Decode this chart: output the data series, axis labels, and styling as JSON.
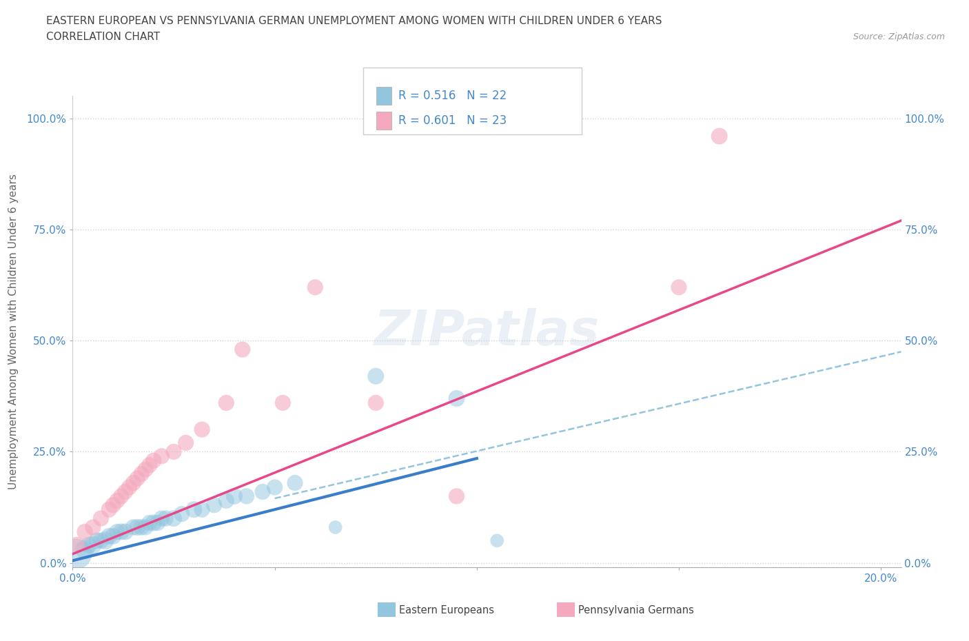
{
  "title_line1": "EASTERN EUROPEAN VS PENNSYLVANIA GERMAN UNEMPLOYMENT AMONG WOMEN WITH CHILDREN UNDER 6 YEARS",
  "title_line2": "CORRELATION CHART",
  "source": "Source: ZipAtlas.com",
  "ylabel": "Unemployment Among Women with Children Under 6 years",
  "legend_label1": "Eastern Europeans",
  "legend_label2": "Pennsylvania Germans",
  "blue_color": "#92c5de",
  "pink_color": "#f4a9be",
  "blue_line_color": "#3a7dc9",
  "pink_line_color": "#e8478a",
  "dashed_line_color": "#92c5de",
  "grid_color": "#d0d0d0",
  "xlim": [
    0.0,
    0.205
  ],
  "ylim": [
    -0.01,
    1.05
  ],
  "yticks": [
    0.0,
    0.25,
    0.5,
    0.75,
    1.0
  ],
  "ytick_labels": [
    "0.0%",
    "25.0%",
    "50.0%",
    "75.0%",
    "100.0%"
  ],
  "xtick_positions": [
    0.0,
    0.05,
    0.1,
    0.15,
    0.2
  ],
  "xtick_labels": [
    "0.0%",
    "",
    "",
    "",
    "20.0%"
  ],
  "ee_x": [
    0.001,
    0.003,
    0.004,
    0.005,
    0.006,
    0.007,
    0.008,
    0.009,
    0.01,
    0.011,
    0.012,
    0.013,
    0.015,
    0.016,
    0.017,
    0.018,
    0.019,
    0.02,
    0.021,
    0.022,
    0.023,
    0.025,
    0.027,
    0.03,
    0.032,
    0.035,
    0.038,
    0.04,
    0.043,
    0.047,
    0.05,
    0.055,
    0.065,
    0.075,
    0.095,
    0.105
  ],
  "ee_y": [
    0.02,
    0.03,
    0.04,
    0.04,
    0.05,
    0.05,
    0.05,
    0.06,
    0.06,
    0.07,
    0.07,
    0.07,
    0.08,
    0.08,
    0.08,
    0.08,
    0.09,
    0.09,
    0.09,
    0.1,
    0.1,
    0.1,
    0.11,
    0.12,
    0.12,
    0.13,
    0.14,
    0.15,
    0.15,
    0.16,
    0.17,
    0.18,
    0.08,
    0.42,
    0.37,
    0.05
  ],
  "ee_size": [
    1000,
    400,
    300,
    350,
    300,
    280,
    350,
    300,
    300,
    280,
    300,
    300,
    280,
    300,
    280,
    280,
    280,
    300,
    280,
    280,
    280,
    300,
    280,
    300,
    280,
    280,
    280,
    300,
    280,
    280,
    280,
    280,
    200,
    300,
    300,
    200
  ],
  "pg_x": [
    0.001,
    0.003,
    0.005,
    0.007,
    0.009,
    0.01,
    0.011,
    0.012,
    0.013,
    0.014,
    0.015,
    0.016,
    0.017,
    0.018,
    0.019,
    0.02,
    0.022,
    0.025,
    0.028,
    0.032,
    0.038,
    0.042,
    0.052,
    0.06,
    0.075,
    0.095,
    0.15,
    0.16
  ],
  "pg_y": [
    0.04,
    0.07,
    0.08,
    0.1,
    0.12,
    0.13,
    0.14,
    0.15,
    0.16,
    0.17,
    0.18,
    0.19,
    0.2,
    0.21,
    0.22,
    0.23,
    0.24,
    0.25,
    0.27,
    0.3,
    0.36,
    0.48,
    0.36,
    0.62,
    0.36,
    0.15,
    0.62,
    0.96
  ],
  "pg_size": [
    300,
    280,
    280,
    280,
    280,
    280,
    280,
    280,
    280,
    280,
    280,
    280,
    280,
    280,
    280,
    280,
    280,
    280,
    280,
    280,
    280,
    280,
    280,
    280,
    280,
    280,
    280,
    300
  ],
  "blue_trend_x": [
    0.0,
    0.1
  ],
  "blue_trend_y": [
    0.005,
    0.235
  ],
  "pink_trend_x": [
    0.0,
    0.205
  ],
  "pink_trend_y": [
    0.02,
    0.77
  ],
  "dashed_trend_x": [
    0.05,
    0.205
  ],
  "dashed_trend_y": [
    0.145,
    0.475
  ]
}
